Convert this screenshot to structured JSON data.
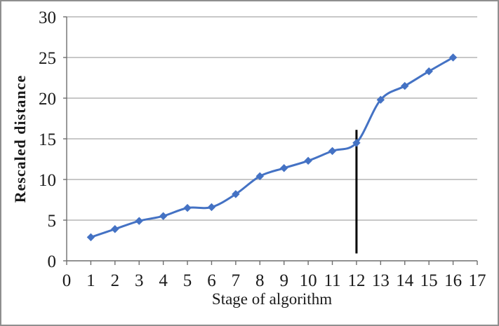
{
  "chart_data": {
    "type": "line",
    "title": "",
    "xlabel": "Stage of algorithm",
    "ylabel": "Rescaled distance",
    "xlim": [
      0,
      17
    ],
    "ylim": [
      0,
      30
    ],
    "x_ticks": [
      0,
      1,
      2,
      3,
      4,
      5,
      6,
      7,
      8,
      9,
      10,
      11,
      12,
      13,
      14,
      15,
      16,
      17
    ],
    "y_ticks": [
      0,
      5,
      10,
      15,
      20,
      25,
      30
    ],
    "grid": "horizontal",
    "legend": "none",
    "marker": "diamond",
    "line_smoothed": true,
    "series": [
      {
        "name": "Rescaled distance",
        "x": [
          1,
          2,
          3,
          4,
          5,
          6,
          7,
          8,
          9,
          10,
          11,
          12,
          13,
          14,
          15,
          16
        ],
        "y": [
          2.9,
          3.9,
          4.9,
          5.5,
          6.5,
          6.6,
          8.2,
          10.4,
          11.4,
          12.3,
          13.5,
          14.5,
          19.8,
          21.5,
          23.3,
          25.0
        ]
      }
    ],
    "annotations": [
      {
        "type": "vline",
        "x": 12,
        "y_from": 0.9,
        "y_to": 16.1,
        "color": "#000000",
        "width": 3
      }
    ],
    "colors": {
      "line": "#4472C4",
      "marker": "#4472C4",
      "gridline": "#a6a6a6",
      "axis": "#6e6e6e",
      "text": "#1a1a1a",
      "background": "#ffffff",
      "border": "#8f8f8f"
    }
  }
}
